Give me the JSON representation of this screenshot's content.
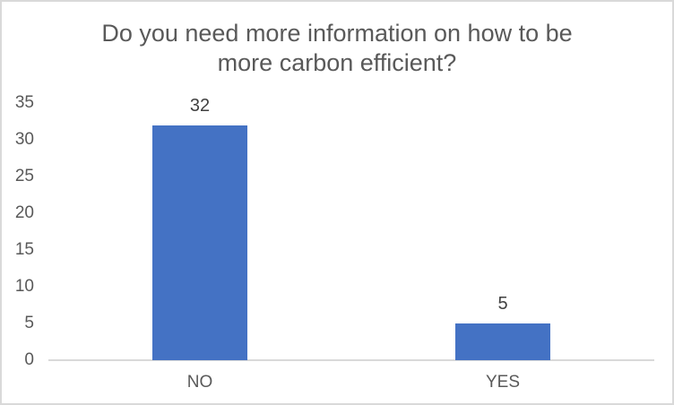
{
  "chart_data": {
    "type": "bar",
    "title": "Do you need more information on how to be more carbon efficient?",
    "categories": [
      "NO",
      "YES"
    ],
    "values": [
      32,
      5
    ],
    "data_labels": [
      "32",
      "5"
    ],
    "xlabel": "",
    "ylabel": "",
    "ylim": [
      0,
      35
    ],
    "ytick_step": 5,
    "ytick_labels": [
      "0",
      "5",
      "10",
      "15",
      "20",
      "25",
      "30",
      "35"
    ],
    "grid": false,
    "legend": false,
    "data_labels_position": "outside-end"
  },
  "colors": {
    "bar": "#4472c4",
    "title_text": "#595959",
    "axis_text": "#595959",
    "data_label_text": "#404040",
    "axis_line": "#d9d9d9",
    "frame_border": "#d9d9d9"
  }
}
